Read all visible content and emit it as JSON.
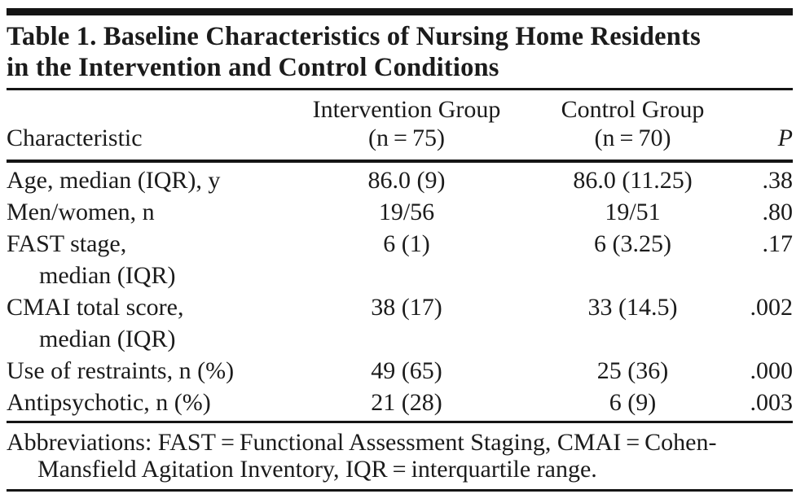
{
  "figure": {
    "title_line1": "Table 1. Baseline Characteristics of Nursing Home Residents",
    "title_line2": "in the Intervention and Control Conditions"
  },
  "table": {
    "header": {
      "characteristic": "Characteristic",
      "intervention_line1": "Intervention Group",
      "intervention_line2": "(n = 75)",
      "control_line1": "Control Group",
      "control_line2": "(n = 70)",
      "p": "P"
    },
    "rows": [
      {
        "characteristic": "Age, median (IQR), y",
        "characteristic_line2": "",
        "intervention": "86.0 (9)",
        "control": "86.0 (11.25)",
        "p": ".38"
      },
      {
        "characteristic": "Men/women, n",
        "characteristic_line2": "",
        "intervention": "19/56",
        "control": "19/51",
        "p": ".80"
      },
      {
        "characteristic": "FAST stage,",
        "characteristic_line2": "median (IQR)",
        "intervention": "6 (1)",
        "control": "6 (3.25)",
        "p": ".17"
      },
      {
        "characteristic": "CMAI total score,",
        "characteristic_line2": "median (IQR)",
        "intervention": "38 (17)",
        "control": "33 (14.5)",
        "p": ".002"
      },
      {
        "characteristic": "Use of restraints, n (%)",
        "characteristic_line2": "",
        "intervention": "49 (65)",
        "control": "25 (36)",
        "p": ".000"
      },
      {
        "characteristic": "Antipsychotic, n (%)",
        "characteristic_line2": "",
        "intervention": "21 (28)",
        "control": "6 (9)",
        "p": ".003"
      }
    ]
  },
  "footer": {
    "line1": "Abbreviations: FAST = Functional Assessment Staging, CMAI = Cohen-",
    "line2": "Mansfield Agitation Inventory, IQR = interquartile range."
  },
  "colors": {
    "text": "#1b1b1b",
    "rule": "#151515",
    "background": "#ffffff"
  }
}
